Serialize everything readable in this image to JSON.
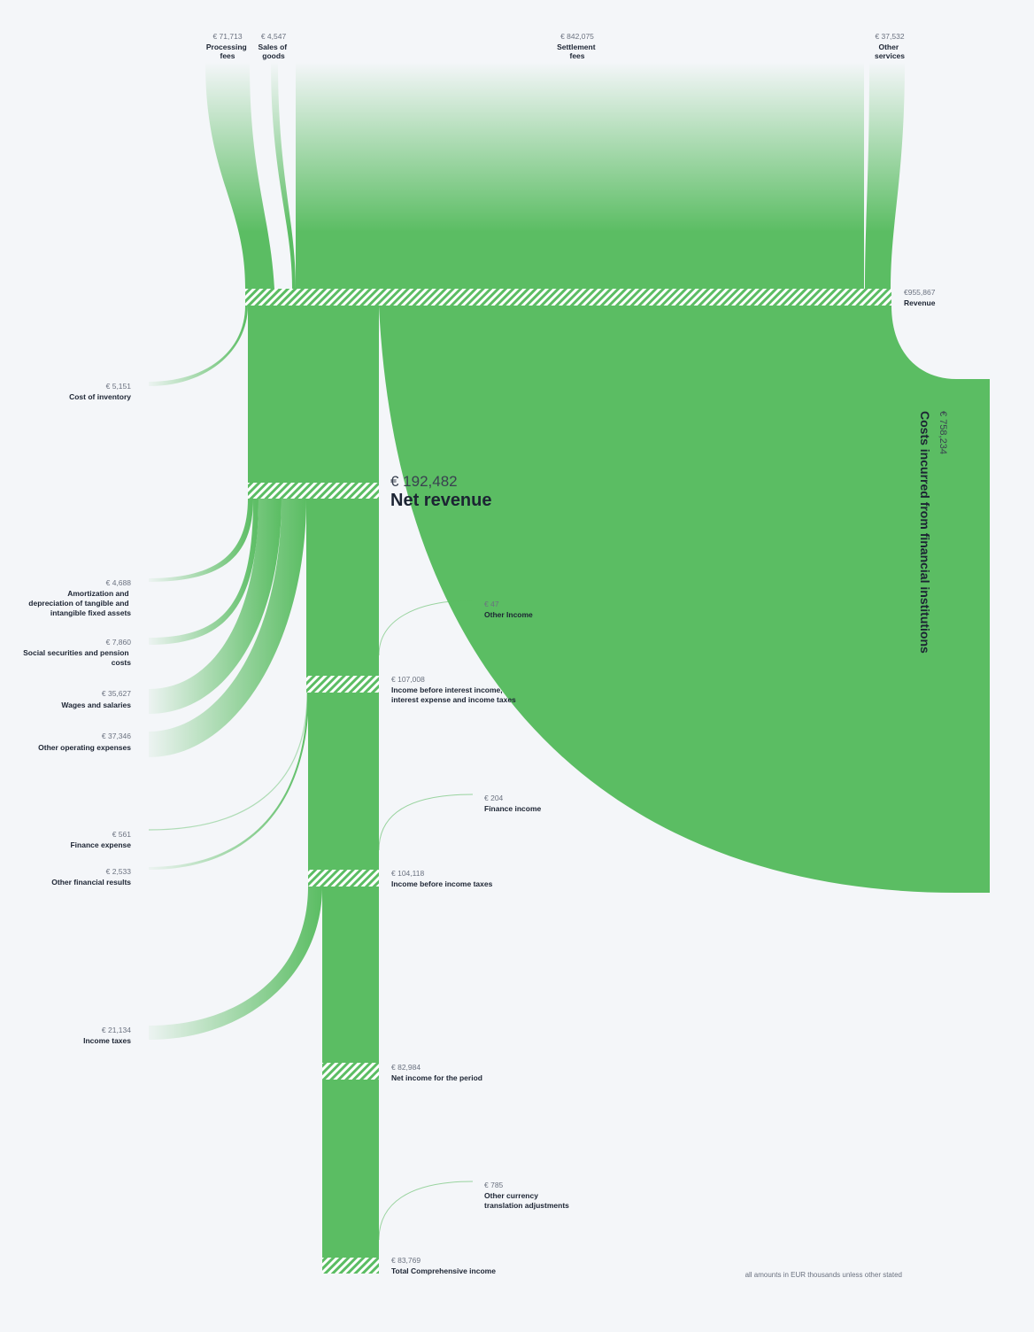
{
  "chart_data": {
    "type": "sankey",
    "title": "",
    "unit_note": "all amounts in EUR thousands unless other stated",
    "colors": {
      "flow": "#5bbd63",
      "background": "#f4f6f9",
      "hatch": "#ffffff"
    },
    "inflows": [
      {
        "id": "processing",
        "amount": "€ 71,713",
        "label": [
          "Processing",
          "fees"
        ],
        "value": 71713
      },
      {
        "id": "sales",
        "amount": "€ 4,547",
        "label": [
          "Sales of",
          "goods"
        ],
        "value": 4547
      },
      {
        "id": "settlement",
        "amount": "€ 842,075",
        "label": [
          "Settlement",
          "fees"
        ],
        "value": 842075
      },
      {
        "id": "other_services",
        "amount": "€ 37,532",
        "label": [
          "Other",
          "services"
        ],
        "value": 37532
      }
    ],
    "nodes": [
      {
        "id": "revenue",
        "amount": "€955,867",
        "label": [
          "Revenue"
        ],
        "value": 955867
      },
      {
        "id": "net_revenue",
        "amount": "€ 192,482",
        "label": [
          "Net revenue"
        ],
        "value": 192482
      },
      {
        "id": "ebit",
        "amount": "€ 107,008",
        "label": [
          "Income before interest income,",
          "interest expense and income taxes"
        ],
        "value": 107008
      },
      {
        "id": "ebt",
        "amount": "€ 104,118",
        "label": [
          "Income before income taxes"
        ],
        "value": 104118
      },
      {
        "id": "net_income",
        "amount": "€ 82,984",
        "label": [
          "Net income for the period"
        ],
        "value": 82984
      },
      {
        "id": "total_comprehensive",
        "amount": "€ 83,769",
        "label": [
          "Total Comprehensive income"
        ],
        "value": 83769
      }
    ],
    "outflows": [
      {
        "id": "cost_inventory",
        "amount": "€ 5,151",
        "label": [
          "Cost of inventory"
        ],
        "value": 5151
      },
      {
        "id": "costs_fin",
        "amount": "€ 758,234",
        "label": [
          "Costs incurred from financial institutions"
        ],
        "value": 758234
      },
      {
        "id": "amortization",
        "amount": "€ 4,688",
        "label": [
          "Amortization and",
          "depreciation of tangible and",
          "intangible fixed assets"
        ],
        "value": 4688
      },
      {
        "id": "social",
        "amount": "€ 7,860",
        "label": [
          "Social securities and pension",
          "costs"
        ],
        "value": 7860
      },
      {
        "id": "wages",
        "amount": "€ 35,627",
        "label": [
          "Wages and salaries"
        ],
        "value": 35627
      },
      {
        "id": "other_opex",
        "amount": "€ 37,346",
        "label": [
          "Other operating expenses"
        ],
        "value": 37346
      },
      {
        "id": "finance_expense",
        "amount": "€ 561",
        "label": [
          "Finance expense"
        ],
        "value": 561
      },
      {
        "id": "other_fin_results",
        "amount": "€ 2,533",
        "label": [
          "Other financial results"
        ],
        "value": 2533
      },
      {
        "id": "income_taxes",
        "amount": "€ 21,134",
        "label": [
          "Income taxes"
        ],
        "value": 21134
      }
    ],
    "side_inflows": [
      {
        "id": "other_income",
        "amount": "€ 47",
        "label": [
          "Other Income"
        ],
        "value": 47
      },
      {
        "id": "finance_income",
        "amount": "€ 204",
        "label": [
          "Finance income"
        ],
        "value": 204
      },
      {
        "id": "fx_adjust",
        "amount": "€ 785",
        "label": [
          "Other currency",
          "translation adjustments"
        ],
        "value": 785
      }
    ]
  }
}
